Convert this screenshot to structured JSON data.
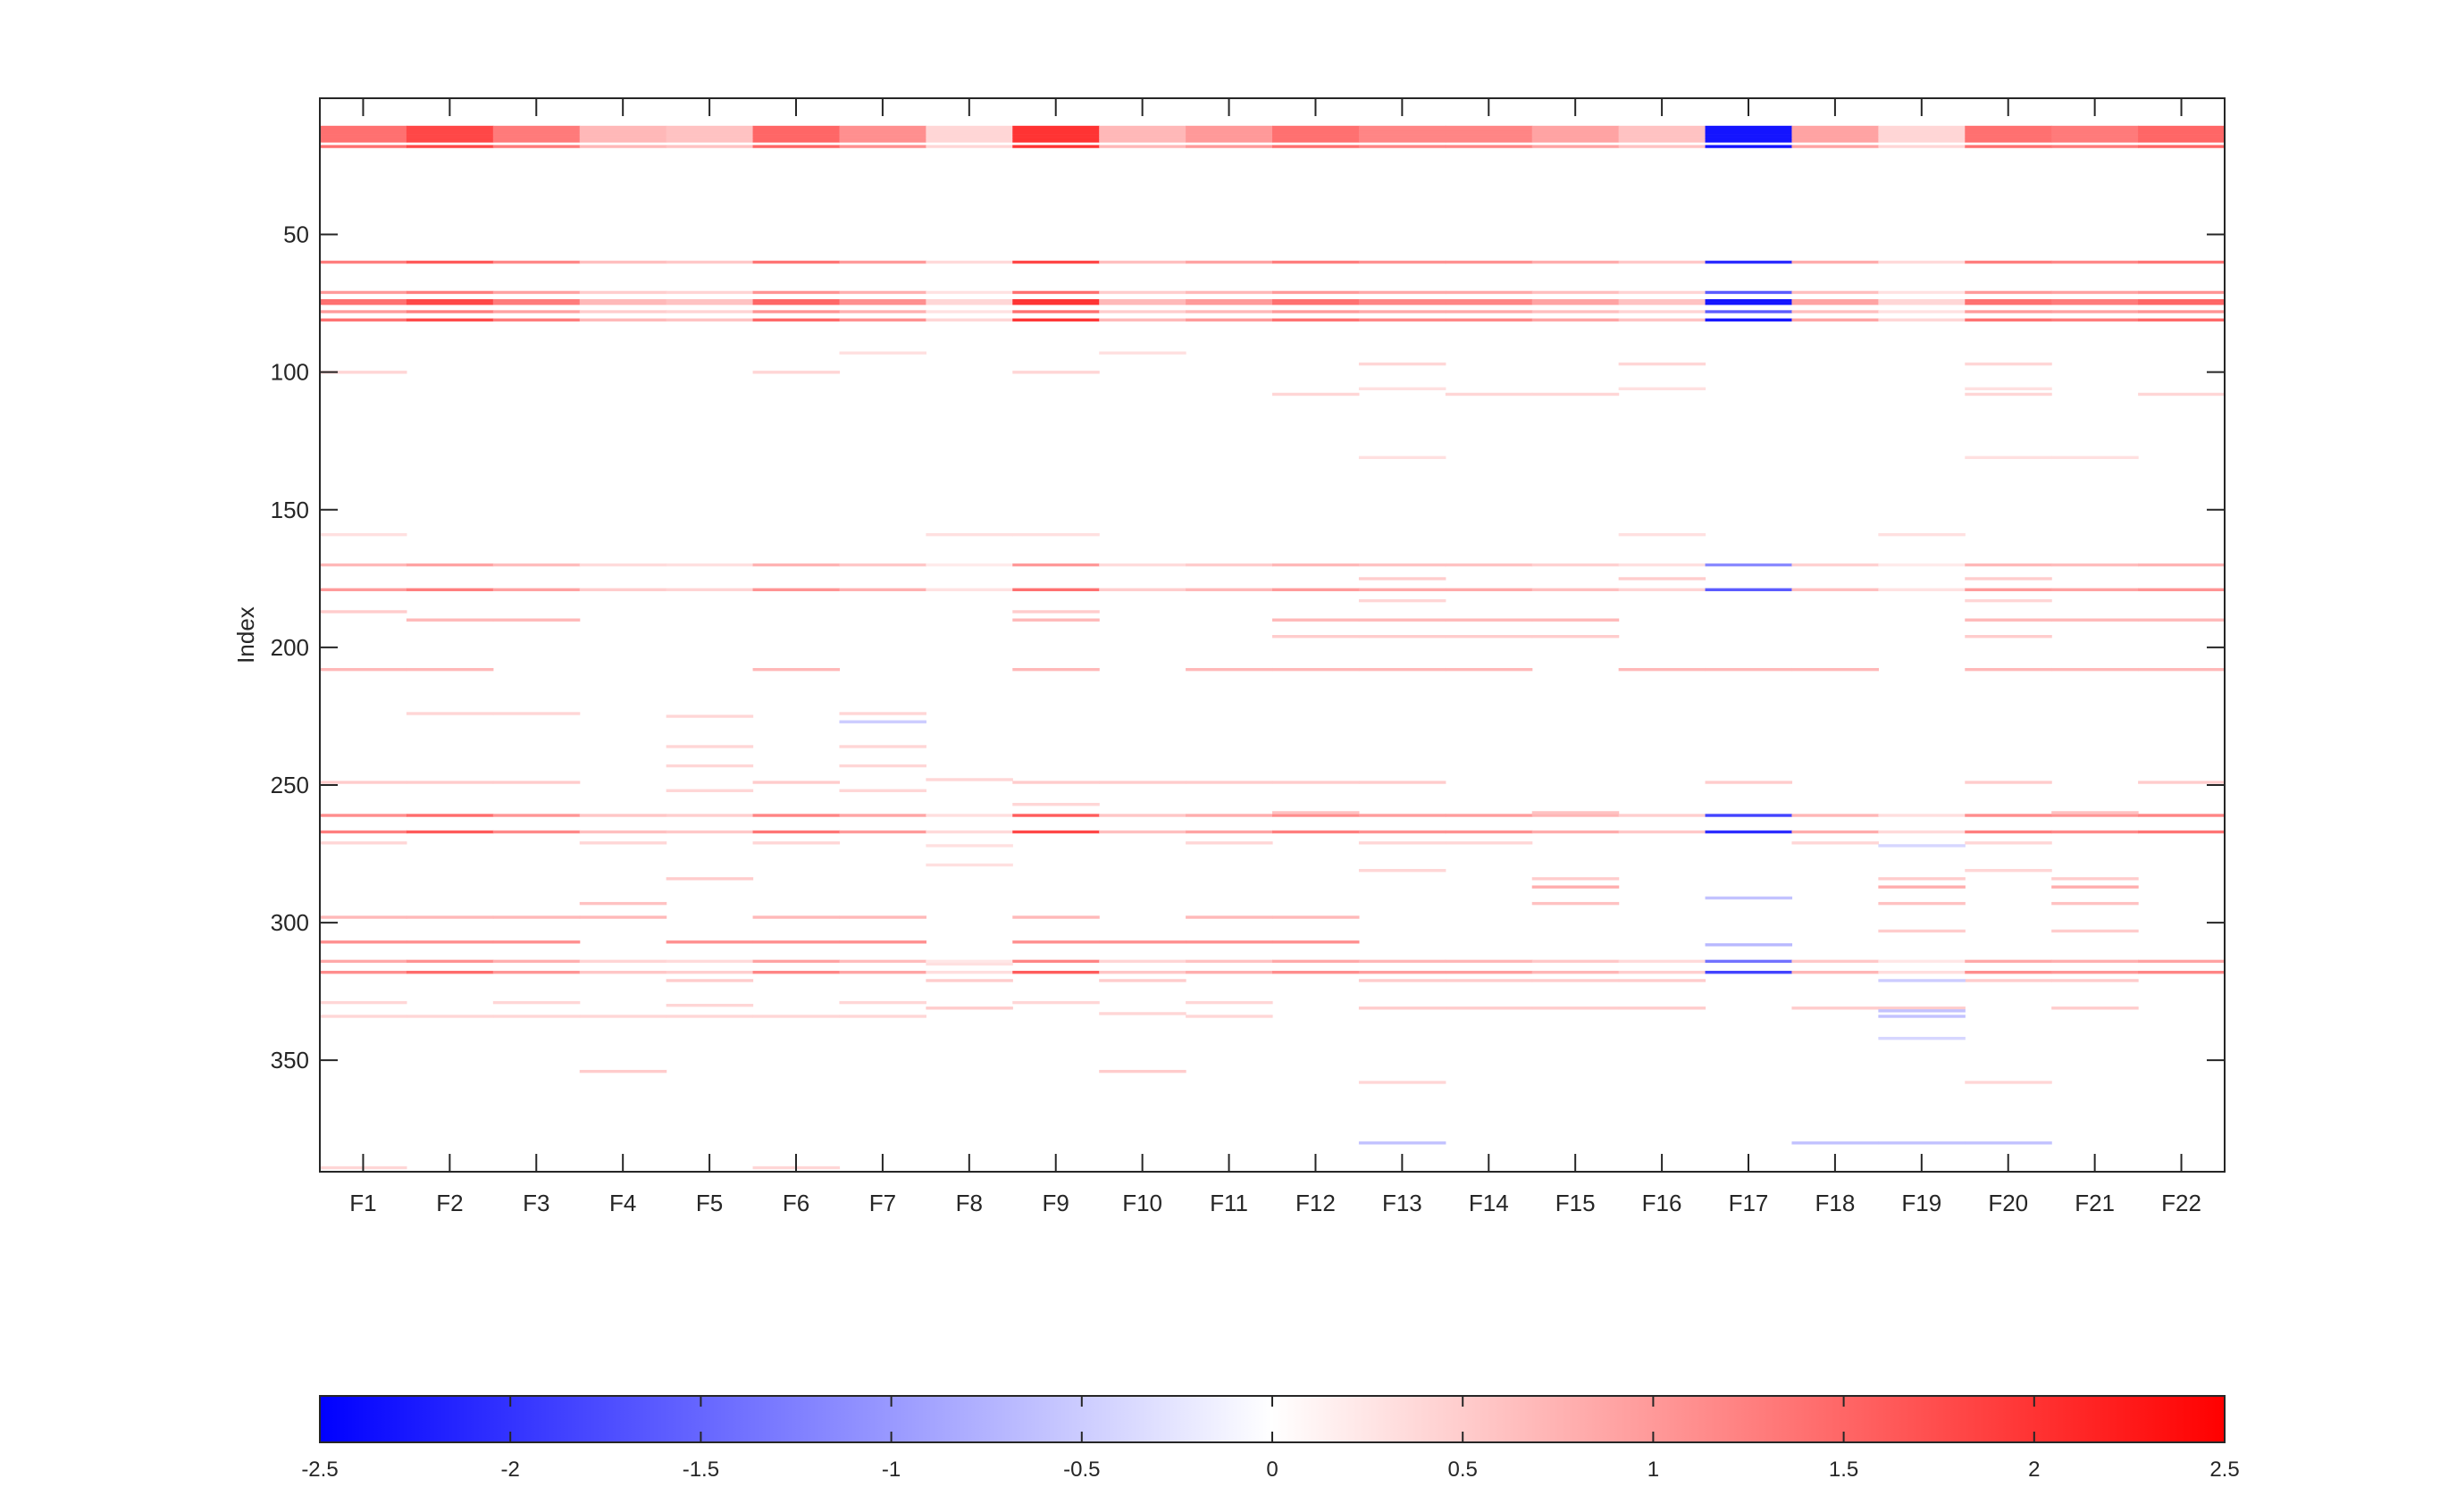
{
  "chart_data": {
    "type": "heatmap",
    "title": "",
    "xlabel": "",
    "ylabel": "Index",
    "ylim": [
      1,
      390
    ],
    "y_reversed": true,
    "y_ticks": [
      50,
      100,
      150,
      200,
      250,
      300,
      350
    ],
    "categories": [
      "F1",
      "F2",
      "F3",
      "F4",
      "F5",
      "F6",
      "F7",
      "F8",
      "F9",
      "F10",
      "F11",
      "F12",
      "F13",
      "F14",
      "F15",
      "F16",
      "F17",
      "F18",
      "F19",
      "F20",
      "F21",
      "F22"
    ],
    "grid": false,
    "colormap": {
      "low_color": "#0000ff",
      "mid_color": "#ffffff",
      "high_color": "#ff0000",
      "clim": [
        -2.5,
        2.5
      ],
      "ticks": [
        -2.5,
        -2,
        -1.5,
        -1,
        -0.5,
        0,
        0.5,
        1,
        1.5,
        2,
        2.5
      ],
      "tick_labels": [
        "-2.5",
        "-2",
        "-1.5",
        "-1",
        "-0.5",
        "0",
        "0.5",
        "1",
        "1.5",
        "2",
        "2.5"
      ],
      "location": "bottom"
    },
    "block_rows": [
      11,
      12,
      13,
      14,
      15
    ],
    "block_values": [
      1.4,
      1.8,
      1.3,
      0.7,
      0.6,
      1.5,
      1.1,
      0.4,
      2.0,
      0.7,
      1.0,
      1.4,
      1.2,
      1.2,
      0.9,
      0.6,
      -2.3,
      0.9,
      0.4,
      1.4,
      1.3,
      1.5
    ],
    "full_rows": [
      {
        "index": 16,
        "factor": 1.0
      },
      {
        "index": 18,
        "factor": 1.0
      },
      {
        "index": 60,
        "factor": 0.9
      },
      {
        "index": 71,
        "factor": 0.7
      },
      {
        "index": 74,
        "factor": 1.0
      },
      {
        "index": 75,
        "factor": 1.0
      },
      {
        "index": 78,
        "factor": 0.7
      },
      {
        "index": 81,
        "factor": 1.0
      },
      {
        "index": 170,
        "factor": 0.5
      },
      {
        "index": 179,
        "factor": 0.7
      },
      {
        "index": 261,
        "factor": 0.8
      },
      {
        "index": 267,
        "factor": 0.9
      },
      {
        "index": 314,
        "factor": 0.6
      },
      {
        "index": 318,
        "factor": 0.8
      }
    ],
    "sparse_rows": [
      {
        "index": 100,
        "value": 0.4,
        "features": [
          1,
          6,
          9
        ]
      },
      {
        "index": 93,
        "value": 0.3,
        "features": [
          7,
          10
        ]
      },
      {
        "index": 97,
        "value": 0.4,
        "features": [
          13,
          16,
          20
        ]
      },
      {
        "index": 106,
        "value": 0.3,
        "features": [
          13,
          16,
          20
        ]
      },
      {
        "index": 108,
        "value": 0.4,
        "features": [
          12,
          14,
          15,
          20,
          22
        ]
      },
      {
        "index": 131,
        "value": 0.3,
        "features": [
          13,
          20,
          21
        ]
      },
      {
        "index": 159,
        "value": 0.3,
        "features": [
          1,
          8,
          9,
          16,
          19
        ]
      },
      {
        "index": 175,
        "value": 0.5,
        "features": [
          13,
          16,
          20
        ]
      },
      {
        "index": 183,
        "value": 0.4,
        "features": [
          13,
          20
        ]
      },
      {
        "index": 187,
        "value": 0.5,
        "features": [
          1,
          9
        ]
      },
      {
        "index": 190,
        "value": 0.7,
        "features": [
          2,
          3,
          9,
          12,
          13,
          14,
          15,
          20,
          21,
          22
        ]
      },
      {
        "index": 196,
        "value": 0.5,
        "features": [
          12,
          13,
          14,
          15,
          20
        ]
      },
      {
        "index": 208,
        "value": 0.7,
        "features": [
          1,
          2,
          6,
          9,
          11,
          12,
          13,
          14,
          16,
          17,
          18,
          20,
          21,
          22
        ]
      },
      {
        "index": 224,
        "value": 0.4,
        "features": [
          2,
          3,
          7
        ]
      },
      {
        "index": 225,
        "value": 0.4,
        "features": [
          5
        ]
      },
      {
        "index": 227,
        "value": -0.5,
        "features": [
          7
        ]
      },
      {
        "index": 236,
        "value": 0.4,
        "features": [
          5,
          7
        ]
      },
      {
        "index": 243,
        "value": 0.4,
        "features": [
          5,
          7
        ]
      },
      {
        "index": 248,
        "value": 0.4,
        "features": [
          8
        ]
      },
      {
        "index": 249,
        "value": 0.5,
        "features": [
          1,
          2,
          3,
          6,
          9,
          10,
          11,
          12,
          13,
          17,
          20,
          22
        ]
      },
      {
        "index": 252,
        "value": 0.4,
        "features": [
          5,
          7
        ]
      },
      {
        "index": 257,
        "value": 0.4,
        "features": [
          9
        ]
      },
      {
        "index": 260,
        "value": 0.6,
        "features": [
          12,
          15,
          21
        ]
      },
      {
        "index": 271,
        "value": 0.4,
        "features": [
          1,
          4,
          6,
          11,
          13,
          14,
          18,
          20
        ]
      },
      {
        "index": 272,
        "value": -0.4,
        "features": [
          19
        ]
      },
      {
        "index": 272,
        "value": 0.3,
        "features": [
          8
        ]
      },
      {
        "index": 279,
        "value": 0.3,
        "features": [
          8
        ]
      },
      {
        "index": 281,
        "value": 0.4,
        "features": [
          13,
          20
        ]
      },
      {
        "index": 284,
        "value": 0.5,
        "features": [
          5,
          15,
          19,
          21
        ]
      },
      {
        "index": 287,
        "value": 0.8,
        "features": [
          15,
          19,
          21
        ]
      },
      {
        "index": 291,
        "value": -0.6,
        "features": [
          17
        ]
      },
      {
        "index": 293,
        "value": 0.6,
        "features": [
          4,
          15,
          19,
          21
        ]
      },
      {
        "index": 298,
        "value": 0.7,
        "features": [
          1,
          2,
          3,
          4,
          6,
          7,
          9,
          11,
          12
        ]
      },
      {
        "index": 303,
        "value": 0.5,
        "features": [
          19,
          21
        ]
      },
      {
        "index": 307,
        "value": 1.1,
        "features": [
          1,
          2,
          3,
          5,
          6,
          7,
          9,
          10,
          11,
          12
        ]
      },
      {
        "index": 308,
        "value": -0.7,
        "features": [
          17
        ]
      },
      {
        "index": 315,
        "value": 0.3,
        "features": [
          8
        ]
      },
      {
        "index": 321,
        "value": 0.5,
        "features": [
          5,
          8,
          10,
          13,
          14,
          15,
          16,
          20,
          21
        ]
      },
      {
        "index": 321,
        "value": -0.5,
        "features": [
          19
        ]
      },
      {
        "index": 329,
        "value": 0.4,
        "features": [
          1,
          3,
          7,
          9,
          11
        ]
      },
      {
        "index": 330,
        "value": 0.4,
        "features": [
          5
        ]
      },
      {
        "index": 331,
        "value": 0.5,
        "features": [
          8,
          13,
          14,
          15,
          16,
          18,
          19,
          21
        ]
      },
      {
        "index": 332,
        "value": -0.6,
        "features": [
          19
        ]
      },
      {
        "index": 333,
        "value": 0.4,
        "features": [
          10
        ]
      },
      {
        "index": 334,
        "value": 0.4,
        "features": [
          1,
          2,
          3,
          4,
          5,
          6,
          7,
          11
        ]
      },
      {
        "index": 334,
        "value": -0.6,
        "features": [
          19
        ]
      },
      {
        "index": 342,
        "value": -0.4,
        "features": [
          19
        ]
      },
      {
        "index": 354,
        "value": 0.5,
        "features": [
          4,
          10
        ]
      },
      {
        "index": 358,
        "value": 0.4,
        "features": [
          13,
          20
        ]
      },
      {
        "index": 380,
        "value": -0.6,
        "features": [
          13,
          18,
          19,
          20
        ]
      },
      {
        "index": 389,
        "value": 0.4,
        "features": [
          1,
          6
        ]
      }
    ]
  }
}
